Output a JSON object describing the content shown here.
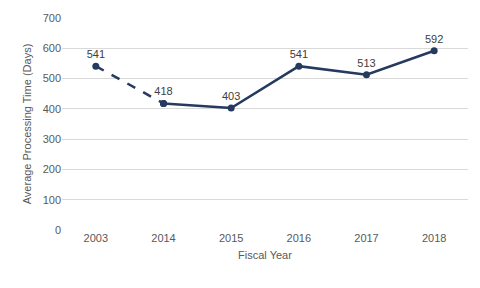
{
  "chart_data": {
    "type": "line",
    "x_label": "Fiscal Year",
    "y_label": "Average Processing Time (Days)",
    "categories": [
      "2003",
      "2014",
      "2015",
      "2016",
      "2017",
      "2018"
    ],
    "series": [
      {
        "color": "#243a5e",
        "line_style": "dashed",
        "marker": "circle",
        "values": [
          541,
          418,
          null,
          null,
          null,
          null
        ]
      },
      {
        "color": "#243a5e",
        "line_style": "solid",
        "marker": "circle",
        "values": [
          null,
          418,
          403,
          541,
          513,
          592
        ]
      }
    ],
    "ylim": [
      0,
      700
    ],
    "yticks": [
      0,
      100,
      200,
      300,
      400,
      500,
      600,
      700
    ],
    "grid": true,
    "data_labels": true
  }
}
